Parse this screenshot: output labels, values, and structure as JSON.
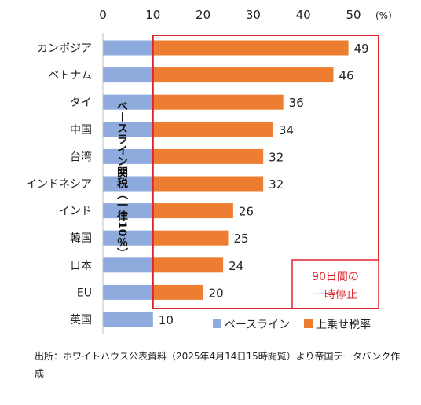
{
  "chart_data": {
    "type": "bar",
    "orientation": "horizontal",
    "stacked": true,
    "unit_label": "(%)",
    "xlim": [
      0,
      50
    ],
    "xticks": [
      0,
      10,
      20,
      30,
      40,
      50
    ],
    "categories": [
      "カンボジア",
      "ベトナム",
      "タイ",
      "中国",
      "台湾",
      "インドネシア",
      "インド",
      "韓国",
      "日本",
      "EU",
      "英国"
    ],
    "totals": [
      49,
      46,
      36,
      34,
      32,
      32,
      26,
      25,
      24,
      20,
      10
    ],
    "series": [
      {
        "name": "ベースライン",
        "color": "#8faadc",
        "values": [
          10,
          10,
          10,
          10,
          10,
          10,
          10,
          10,
          10,
          10,
          10
        ]
      },
      {
        "name": "上乗せ税率",
        "color": "#ed7d31",
        "values": [
          39,
          36,
          26,
          24,
          22,
          22,
          16,
          15,
          14,
          10,
          0
        ]
      }
    ],
    "baseline_annotation": "ベースライン関税（一律10％）",
    "highlight_box": {
      "color": "#e0242a",
      "label_lines": [
        "90日間の",
        "一時停止"
      ]
    },
    "legend_position": "bottom-right",
    "grid": false
  },
  "source_text": "出所：ホワイトハウス公表資料（2025年4月14日15時閲覧）より帝国データバンク作成"
}
